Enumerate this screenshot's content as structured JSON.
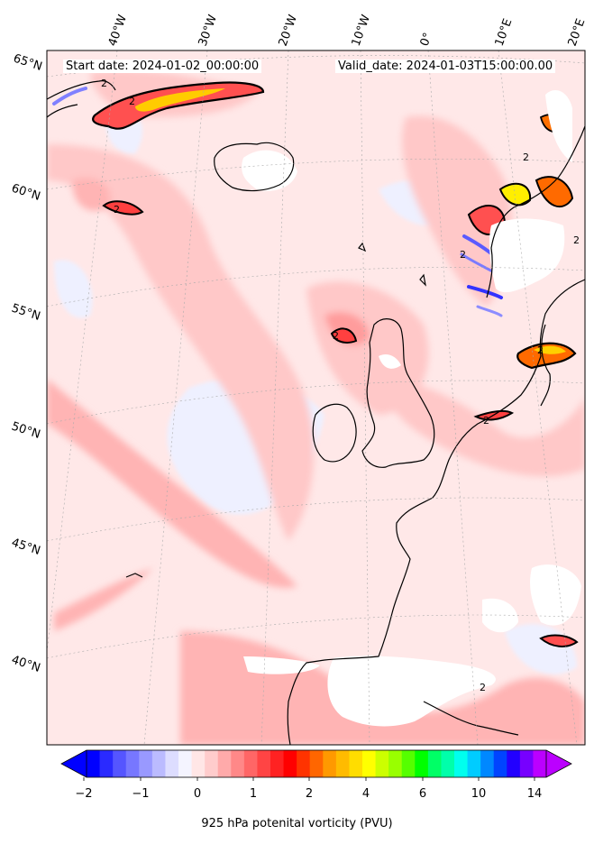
{
  "header": {
    "start_date": "Start date: 2024-01-02_00:00:00",
    "valid_date": "Valid_date: 2024-01-03T15:00:00.00"
  },
  "lon_labels": [
    "40°W",
    "30°W",
    "20°W",
    "10°W",
    "0°",
    "10°E",
    "20°E"
  ],
  "lat_labels": [
    "65°N",
    "60°N",
    "55°N",
    "50°N",
    "45°N",
    "40°N"
  ],
  "contour_label": "2",
  "colorbar": {
    "label": "925 hPa potenital vorticity (PVU)",
    "tick_labels": [
      "-2",
      "-1",
      "0",
      "1",
      "2",
      "4",
      "6",
      "10",
      "14"
    ],
    "colors": [
      "#0000ff",
      "#2a2aff",
      "#5555ff",
      "#7777ff",
      "#9999ff",
      "#bbbbff",
      "#ddddff",
      "#f4f4ff",
      "#ffe6e6",
      "#ffcccc",
      "#ffaaaa",
      "#ff8888",
      "#ff6666",
      "#ff4444",
      "#ff2222",
      "#ff0000",
      "#ff3300",
      "#ff6600",
      "#ff9900",
      "#ffbb00",
      "#ffdd00",
      "#ffff00",
      "#ccff00",
      "#99ff00",
      "#55ff00",
      "#00ff00",
      "#00ff66",
      "#00ffaa",
      "#00ffee",
      "#00ccff",
      "#0088ff",
      "#0044ff",
      "#2200ff",
      "#7700ff",
      "#bb00ff"
    ],
    "extend_min_color": "#0000ff",
    "extend_max_color": "#bb00ff"
  },
  "colors": {
    "background_field": "#ffe8e8",
    "coast": "#000000",
    "grid": "#aaaaaa"
  }
}
